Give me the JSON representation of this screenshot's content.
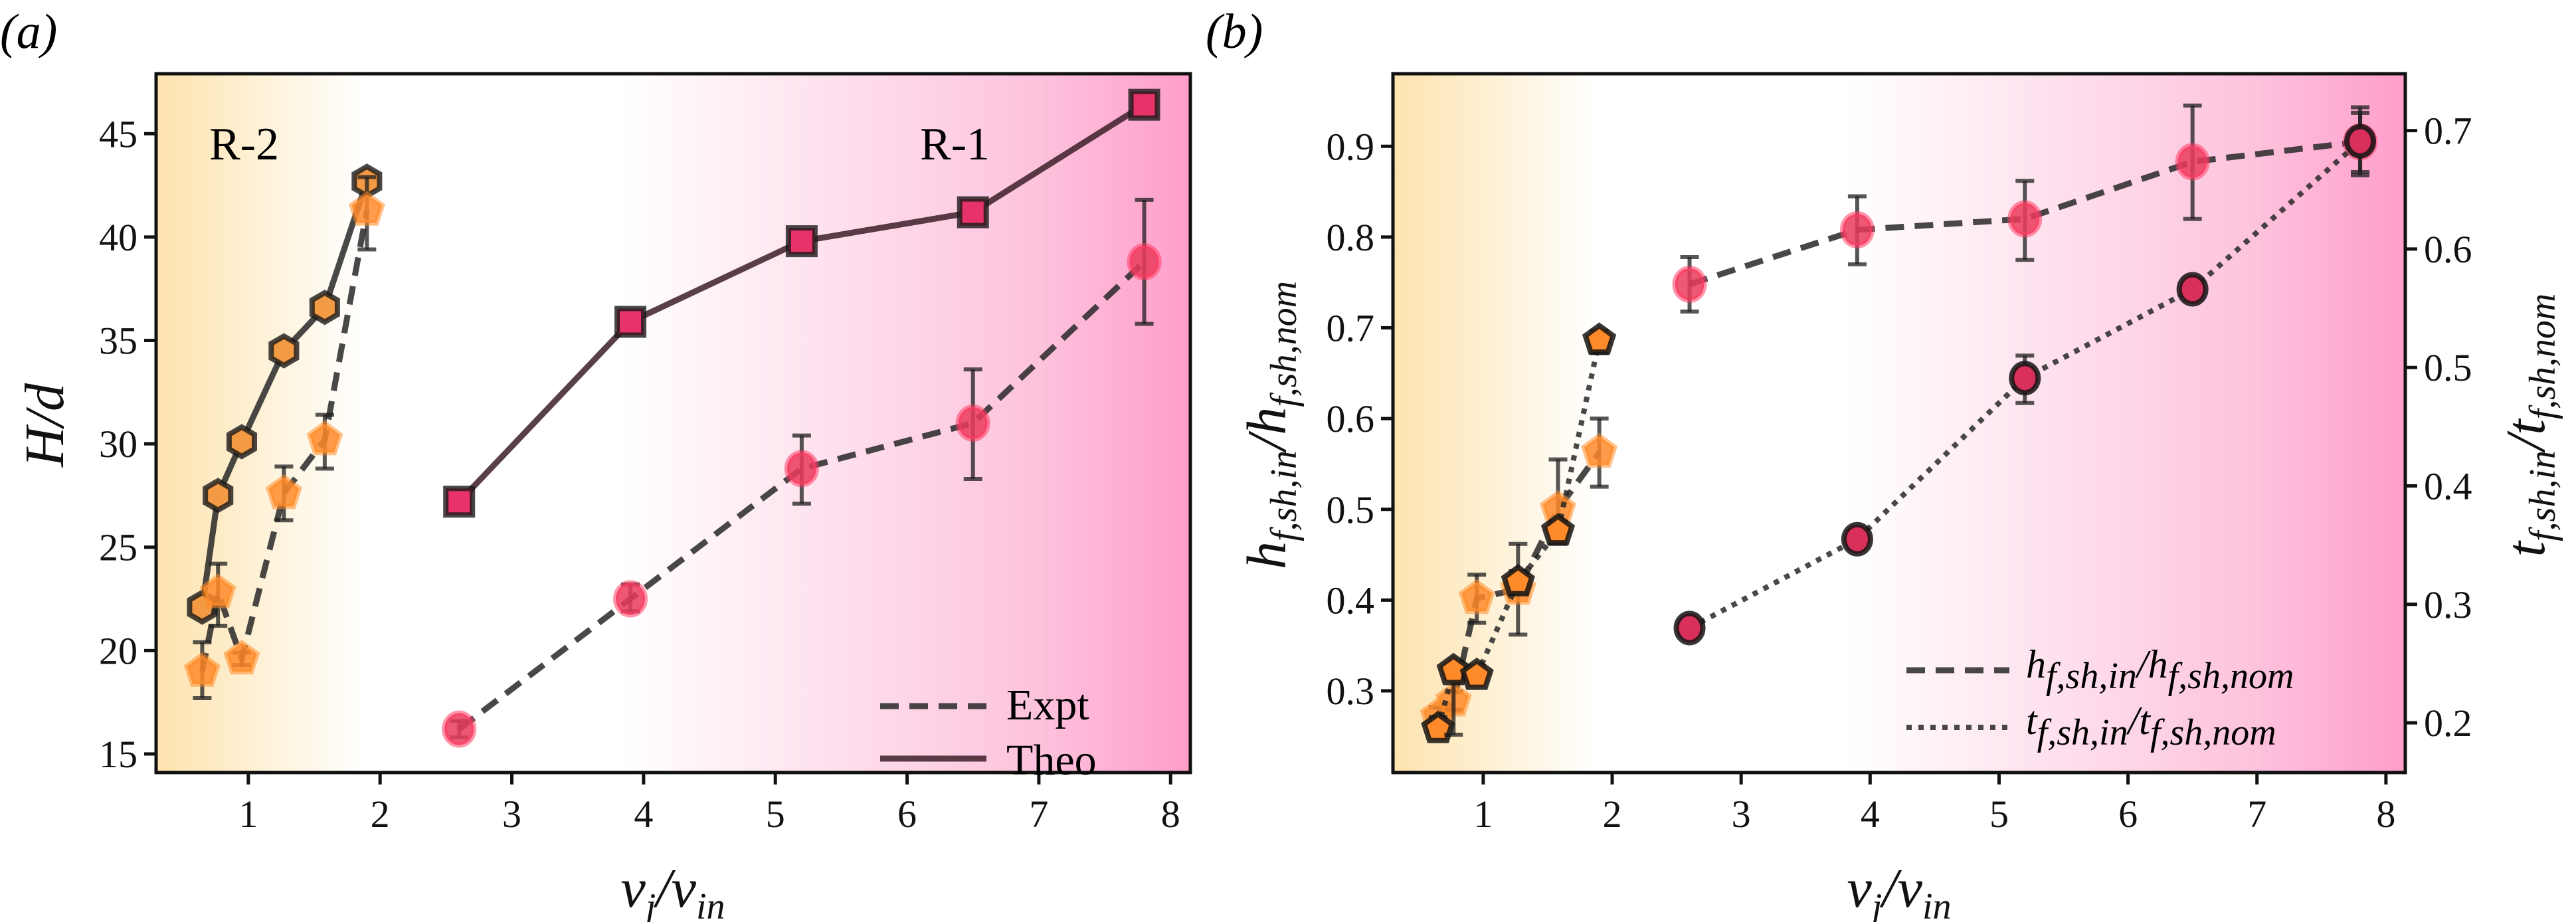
{
  "chart_data": [
    {
      "panel_label": "(a)",
      "type": "line",
      "xlabel": "v_j/v_in",
      "ylabel": "H/d",
      "xlim": [
        0.3,
        8.15
      ],
      "ylim": [
        14.1,
        47.9
      ],
      "xticks": [
        1,
        2,
        3,
        4,
        5,
        6,
        7,
        8
      ],
      "yticks": [
        15,
        20,
        25,
        30,
        35,
        40,
        45
      ],
      "grid": false,
      "background": {
        "type": "horizontal-gradient",
        "left_color": "#fde3ae",
        "middle_color": "#ffffff",
        "right_color": "#ff9ec9"
      },
      "region_labels": [
        "R-2",
        "R-1"
      ],
      "legend": {
        "placement": "lower-right",
        "entries": [
          {
            "label": "Expt",
            "style": "dashed"
          },
          {
            "label": "Theo",
            "style": "solid"
          }
        ]
      },
      "series": [
        {
          "group": "R-2",
          "kind": "Theo",
          "marker": "hexagon",
          "color": "#f39a45",
          "line": "solid",
          "x": [
            0.65,
            0.77,
            0.95,
            1.27,
            1.58,
            1.9
          ],
          "y": [
            22.1,
            27.5,
            30.1,
            34.5,
            36.6,
            42.7
          ]
        },
        {
          "group": "R-2",
          "kind": "Expt",
          "marker": "pentagon",
          "color": "#ff8a2a",
          "line": "dashed",
          "x": [
            0.65,
            0.77,
            0.95,
            1.27,
            1.58,
            1.9
          ],
          "y": [
            19.0,
            22.8,
            19.6,
            27.6,
            30.2,
            41.3
          ],
          "yerr_low": [
            17.7,
            21.2,
            19.3,
            26.3,
            28.8,
            39.4
          ],
          "yerr_high": [
            20.4,
            24.2,
            19.9,
            28.9,
            31.4,
            42.9
          ]
        },
        {
          "group": "R-1",
          "kind": "Theo",
          "marker": "square",
          "color": "#e8336a",
          "line": "solid",
          "x": [
            2.6,
            3.9,
            5.2,
            6.5,
            7.8
          ],
          "y": [
            27.2,
            35.9,
            39.8,
            41.2,
            46.4
          ]
        },
        {
          "group": "R-1",
          "kind": "Expt",
          "marker": "circle",
          "color": "#ea3b5c",
          "line": "dashed",
          "x": [
            2.6,
            3.9,
            5.2,
            6.5,
            7.8
          ],
          "y": [
            16.2,
            22.5,
            28.8,
            31.0,
            38.8
          ],
          "yerr_low": [
            15.8,
            21.9,
            27.1,
            28.3,
            35.8
          ],
          "yerr_high": [
            16.6,
            23.2,
            30.4,
            33.6,
            41.8
          ]
        }
      ]
    },
    {
      "panel_label": "(b)",
      "type": "line",
      "xlabel": "v_j/v_in",
      "ylabel_left": "h_f,sh,in/h_f,sh,nom",
      "ylabel_right": "t_f,sh,in/t_f,sh,nom",
      "xlim": [
        0.3,
        8.15
      ],
      "ylim_left": [
        0.21,
        0.98
      ],
      "ylim_right": [
        0.158,
        0.748
      ],
      "xticks": [
        1,
        2,
        3,
        4,
        5,
        6,
        7,
        8
      ],
      "yticks_left": [
        0.3,
        0.4,
        0.5,
        0.6,
        0.7,
        0.8,
        0.9
      ],
      "yticks_right": [
        0.2,
        0.3,
        0.4,
        0.5,
        0.6,
        0.7
      ],
      "grid": false,
      "background": {
        "type": "horizontal-gradient",
        "left_color": "#fde3ae",
        "middle_color": "#ffffff",
        "right_color": "#ff9ec9"
      },
      "legend": {
        "placement": "lower-right",
        "entries": [
          {
            "label_main": "h",
            "label_sub": "f,sh,in",
            "label_main2": "h",
            "label_sub2": "f,sh,nom",
            "style": "dashed"
          },
          {
            "label_main": "t",
            "label_sub": "f,sh,in",
            "label_main2": "t",
            "label_sub2": "f,sh,nom",
            "style": "dotted"
          }
        ]
      },
      "series": [
        {
          "name": "h_f,sh,in/h_f,sh,nom",
          "axis": "left",
          "group": "R-2",
          "marker": "pentagon",
          "color": "#ff8a2a",
          "line": "dashed",
          "x": [
            0.65,
            0.77,
            0.95,
            1.27,
            1.58,
            1.9
          ],
          "y": [
            0.272,
            0.289,
            0.402,
            0.412,
            0.5,
            0.563
          ],
          "yerr_low": [
            0.262,
            0.279,
            0.375,
            0.362,
            0.462,
            0.525
          ],
          "yerr_high": [
            0.282,
            0.299,
            0.428,
            0.462,
            0.555,
            0.6
          ]
        },
        {
          "name": "h_f,sh,in/h_f,sh,nom",
          "axis": "left",
          "group": "R-1",
          "marker": "circle",
          "color": "#ea3b5c",
          "line": "dashed",
          "x": [
            2.6,
            3.9,
            5.2,
            6.5,
            7.8
          ],
          "y": [
            0.748,
            0.808,
            0.82,
            0.883,
            0.905
          ],
          "yerr_low": [
            0.718,
            0.77,
            0.775,
            0.82,
            0.868
          ],
          "yerr_high": [
            0.778,
            0.845,
            0.862,
            0.945,
            0.943
          ]
        },
        {
          "name": "t_f,sh,in/t_f,sh,nom",
          "axis": "right",
          "group": "R-2",
          "marker": "pentagon",
          "color": "#ff8a2a",
          "line": "dotted",
          "x": [
            0.65,
            0.77,
            0.95,
            1.27,
            1.58,
            1.9
          ],
          "y": [
            0.195,
            0.244,
            0.24,
            0.319,
            0.362,
            0.523
          ],
          "yerr_low": [
            0.19,
            0.19,
            0.235,
            0.31,
            0.355,
            0.512
          ],
          "yerr_high": [
            0.205,
            0.25,
            0.248,
            0.328,
            0.37,
            0.531
          ]
        },
        {
          "name": "t_f,sh,in/t_f,sh,nom",
          "axis": "right",
          "group": "R-1",
          "marker": "circle",
          "color": "#d8305a",
          "line": "dotted",
          "x": [
            2.6,
            3.9,
            5.2,
            6.5,
            7.8
          ],
          "y": [
            0.28,
            0.355,
            0.491,
            0.566,
            0.691
          ],
          "yerr_low": [
            0.275,
            0.348,
            0.47,
            0.558,
            0.665
          ],
          "yerr_high": [
            0.285,
            0.362,
            0.51,
            0.574,
            0.715
          ]
        }
      ]
    }
  ]
}
